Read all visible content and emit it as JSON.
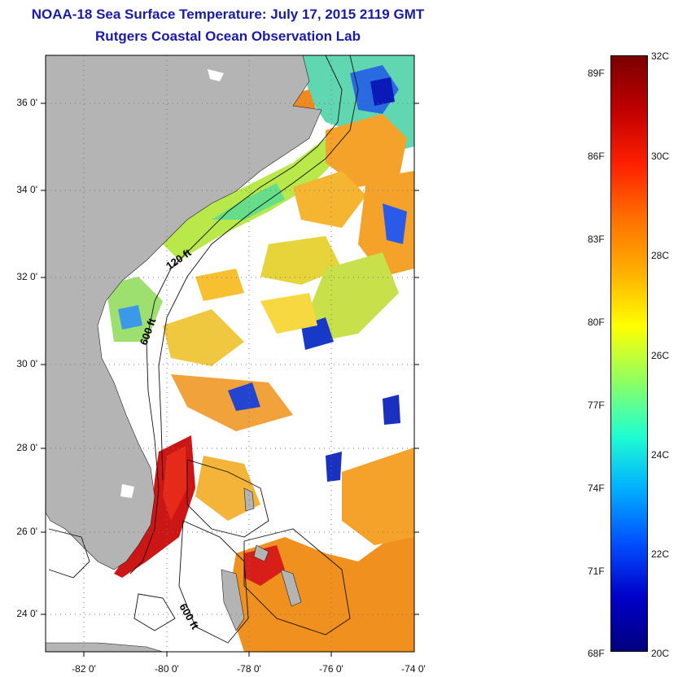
{
  "title": "NOAA-18 Sea Surface Temperature:  July 17, 2015 2119 GMT",
  "subtitle": "Rutgers Coastal Ocean Observation Lab",
  "axes": {
    "y_ticks": [
      "36 0'",
      "34 0'",
      "32 0'",
      "30 0'",
      "28 0'",
      "26 0'",
      "24 0'"
    ],
    "x_ticks": [
      "-82 0'",
      "-80 0'",
      "-78 0'",
      "-76 0'",
      "-74 0'"
    ]
  },
  "contour_labels": [
    "120 ft",
    "600 ft",
    "600 ft"
  ],
  "colorbar": {
    "fahrenheit_labels": [
      "89F",
      "86F",
      "83F",
      "80F",
      "77F",
      "74F",
      "71F",
      "68F"
    ],
    "celsius_labels": [
      "32C",
      "30C",
      "28C",
      "26C",
      "24C",
      "22C",
      "20C"
    ],
    "min_c": 20,
    "max_c": 32
  },
  "colors": {
    "title": "#1a1aa8",
    "land": "#b4b4b4",
    "ocean_no_data": "#ffffff"
  }
}
